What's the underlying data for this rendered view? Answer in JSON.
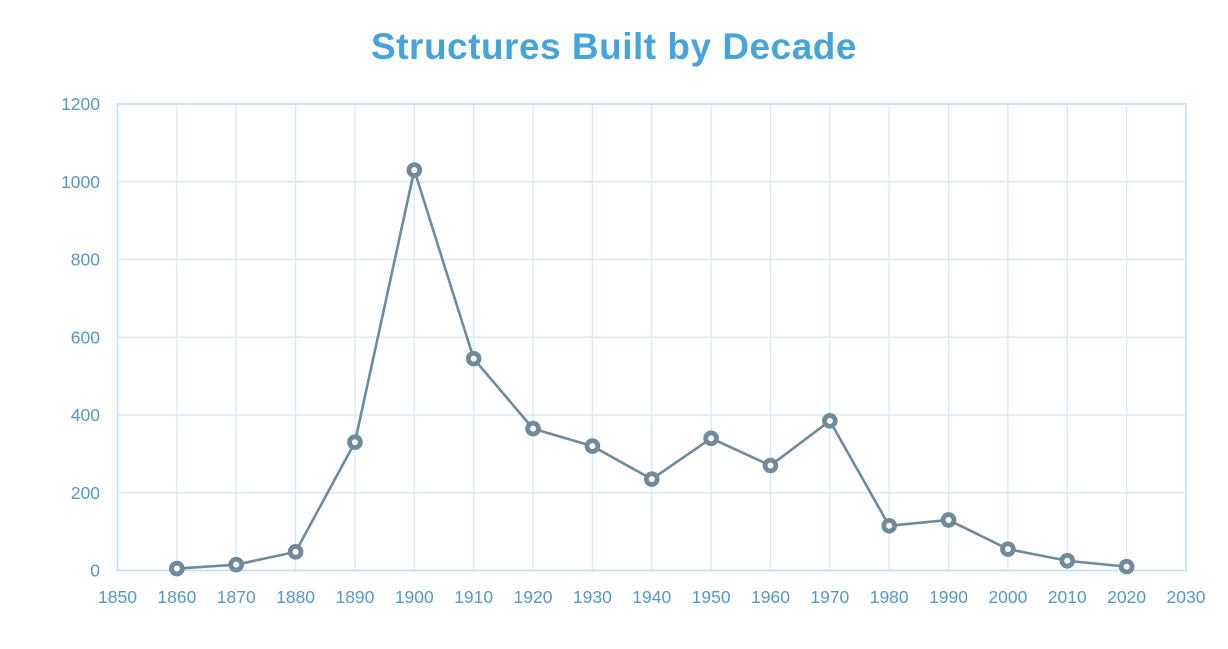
{
  "page": {
    "title": "Structures Built by Decade"
  },
  "chart_data": {
    "type": "line",
    "title": "Structures Built by Decade",
    "x": [
      1860,
      1870,
      1880,
      1890,
      1900,
      1910,
      1920,
      1930,
      1940,
      1950,
      1960,
      1970,
      1980,
      1990,
      2000,
      2010,
      2020
    ],
    "values": [
      5,
      15,
      48,
      330,
      1030,
      545,
      365,
      320,
      235,
      340,
      270,
      385,
      115,
      130,
      55,
      25,
      10
    ],
    "series_name": "Structures Built",
    "x_ticks": [
      "1850",
      "1860",
      "1870",
      "1880",
      "1890",
      "1900",
      "1910",
      "1920",
      "1930",
      "1940",
      "1950",
      "1960",
      "1970",
      "1980",
      "1990",
      "2000",
      "2010",
      "2020",
      "2030"
    ],
    "y_ticks": [
      "0",
      "200",
      "400",
      "600",
      "800",
      "1000",
      "1200"
    ],
    "xlim": [
      1850,
      2030
    ],
    "ylim": [
      0,
      1200
    ],
    "xlabel": "",
    "ylabel": "",
    "grid": true,
    "legend": "none",
    "colors": {
      "title": "#45a5db",
      "tick_labels": "#5598c6",
      "line": "#6f8a9b",
      "marker_ring": "#6f8a9b",
      "marker_center": "#ffffff",
      "gridline": "#d9eaf5",
      "plot_border": "#c6dff0",
      "background": "#ffffff"
    }
  }
}
